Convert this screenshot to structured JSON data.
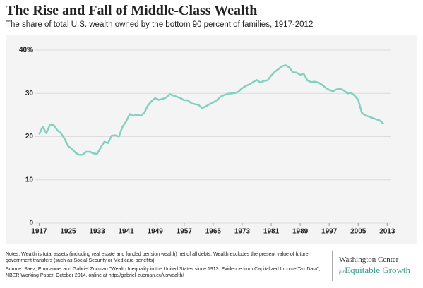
{
  "chart_data": {
    "type": "line",
    "title": "The Rise and Fall of Middle-Class Wealth",
    "subtitle": "The share of total U.S. wealth owned by the bottom 90 percent of families, 1917-2012",
    "x": [
      1917,
      1918,
      1919,
      1920,
      1921,
      1922,
      1923,
      1924,
      1925,
      1926,
      1927,
      1928,
      1929,
      1930,
      1931,
      1932,
      1933,
      1934,
      1935,
      1936,
      1937,
      1938,
      1939,
      1940,
      1941,
      1942,
      1943,
      1944,
      1945,
      1946,
      1947,
      1948,
      1949,
      1950,
      1951,
      1952,
      1953,
      1954,
      1955,
      1956,
      1957,
      1958,
      1959,
      1960,
      1961,
      1962,
      1963,
      1964,
      1965,
      1966,
      1967,
      1968,
      1969,
      1970,
      1971,
      1972,
      1973,
      1974,
      1975,
      1976,
      1977,
      1978,
      1979,
      1980,
      1981,
      1982,
      1983,
      1984,
      1985,
      1986,
      1987,
      1988,
      1989,
      1990,
      1991,
      1992,
      1993,
      1994,
      1995,
      1996,
      1997,
      1998,
      1999,
      2000,
      2001,
      2002,
      2003,
      2004,
      2005,
      2006,
      2007,
      2008,
      2009,
      2010,
      2011,
      2012
    ],
    "values": [
      20.5,
      22.3,
      20.8,
      22.8,
      22.7,
      21.5,
      20.8,
      19.5,
      17.8,
      17.2,
      16.3,
      15.8,
      15.8,
      16.5,
      16.5,
      16.1,
      16.0,
      17.5,
      18.8,
      18.5,
      20.2,
      20.3,
      20.0,
      22.3,
      23.5,
      25.2,
      24.8,
      25.1,
      24.8,
      25.5,
      27.2,
      28.2,
      28.9,
      28.5,
      28.7,
      29.0,
      29.8,
      29.5,
      29.2,
      28.9,
      28.4,
      28.4,
      27.7,
      27.5,
      27.3,
      26.6,
      27.0,
      27.5,
      27.9,
      28.4,
      29.2,
      29.6,
      29.9,
      30.0,
      30.1,
      30.4,
      31.2,
      31.7,
      32.1,
      32.6,
      33.1,
      32.5,
      32.9,
      33.0,
      34.1,
      35.0,
      35.6,
      36.3,
      36.5,
      36.0,
      34.9,
      34.8,
      34.3,
      34.5,
      33.0,
      32.6,
      32.7,
      32.5,
      32.0,
      31.3,
      30.8,
      30.5,
      30.9,
      31.1,
      30.7,
      30.0,
      30.1,
      29.5,
      28.5,
      25.5,
      24.9,
      24.6,
      24.3,
      24.0,
      23.7,
      22.9
    ],
    "color": "#80d2bf",
    "xlim": [
      1914,
      2018
    ],
    "xticks": [
      1917,
      1925,
      1933,
      1941,
      1949,
      1957,
      1965,
      1973,
      1981,
      1989,
      1997,
      2005,
      2013
    ],
    "ylim": [
      0,
      40
    ],
    "yticks": [
      0,
      10,
      20,
      30,
      {
        "value": 40,
        "label": "40%"
      }
    ],
    "grid": true,
    "notes": "Notes: Wealth is total assets (including real estate and funded pension wealth) net of all debts. Wealth excludes the present value of future government transfers (such as Social Security or Medicare benefits).",
    "source": "Source: Saez, Emmanuel and Gabriel Zucman \"Wealth Inequality in the United States since 1913: Evidence from Capitalized Income Tax Data\", NBER Working Paper, October 2014, online at http://gabriel-zucman.eu/uswealth/",
    "logo": {
      "line1": "Washington Center",
      "for": "for",
      "line2": "Equitable Growth"
    }
  }
}
